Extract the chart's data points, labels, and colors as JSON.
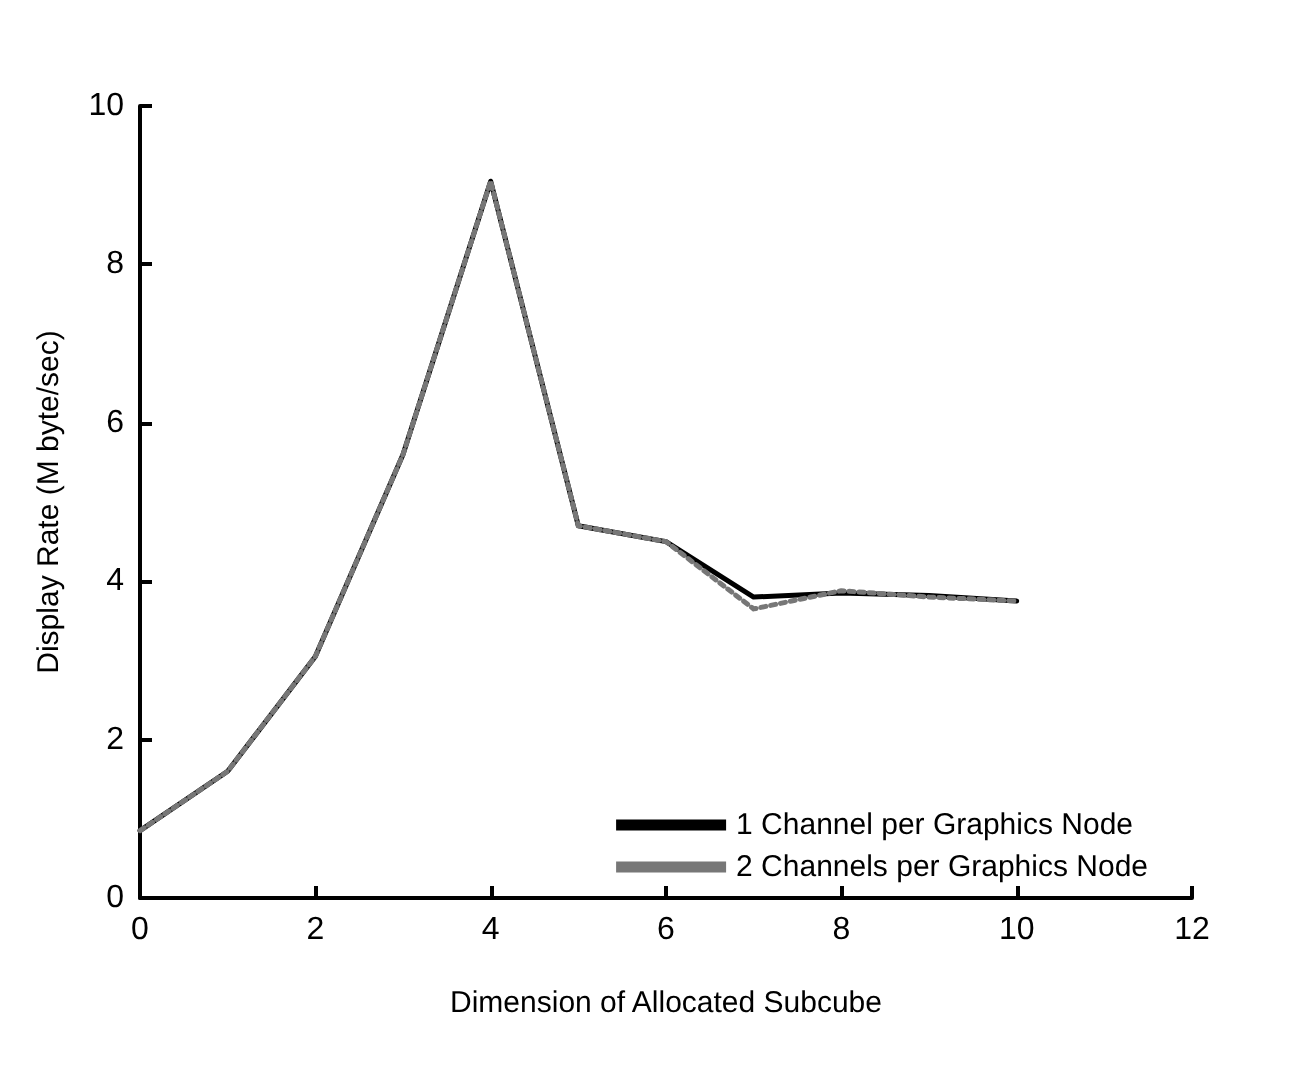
{
  "chart_data": {
    "type": "line",
    "xlabel": "Dimension of Allocated Subcube",
    "ylabel": "Display Rate (M byte/sec)",
    "x": [
      0,
      1,
      2,
      3,
      4,
      5,
      6,
      7,
      8,
      9,
      10
    ],
    "series": [
      {
        "name": "1 Channel per Graphics Node",
        "color": "#000000",
        "line_style": "solid",
        "values": [
          0.85,
          1.6,
          3.05,
          5.6,
          9.05,
          4.7,
          4.5,
          3.8,
          3.85,
          3.82,
          3.75
        ]
      },
      {
        "name": "2 Channels per Graphics Node",
        "color": "#777777",
        "line_style": "dotted",
        "values": [
          0.85,
          1.6,
          3.05,
          5.6,
          9.05,
          4.7,
          4.5,
          3.65,
          3.88,
          3.8,
          3.75
        ]
      }
    ],
    "xlim": [
      0,
      12
    ],
    "xticks": [
      0,
      2,
      4,
      6,
      8,
      10,
      12
    ],
    "ylim": [
      0,
      10
    ],
    "yticks": [
      0,
      2,
      4,
      6,
      8,
      10
    ],
    "grid": false,
    "legend": "bottom right",
    "marker": "none"
  }
}
